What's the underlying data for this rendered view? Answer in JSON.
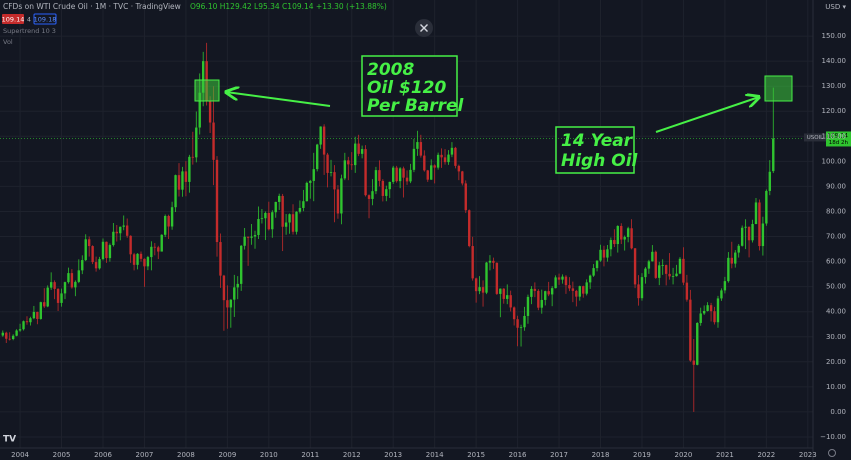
{
  "header": {
    "symbol": "CFDs on WTI Crude Oil · 1M · TVC · TradingView",
    "ohlc": "O96.10 H129.42 L95.34 C109.14 +13.30 (+13.88%)",
    "sell": "109.14",
    "spread": "4",
    "buy": "109.18",
    "indicator": "Supertrend 10 3",
    "volume": "Vol",
    "currency": "USD ▾",
    "symbol_tag": "USOIL",
    "countdown": "18d 2h"
  },
  "chart_data": {
    "type": "candlestick",
    "up_color": "#2fc42f",
    "down_color": "#c42b2b",
    "grid": true,
    "annotations": [
      "2008",
      "Oil $120",
      "Per Barrel",
      "14 Year",
      "High Oil"
    ],
    "ylim": [
      -14.4,
      164.4
    ],
    "yticks": [
      {
        "value": 150,
        "label": "150.00"
      },
      {
        "value": 140,
        "label": "140.00"
      },
      {
        "value": 130,
        "label": "130.00"
      },
      {
        "value": 120,
        "label": "120.00"
      },
      {
        "value": 110,
        "label": "110.00"
      },
      {
        "value": 100,
        "label": "100.00"
      },
      {
        "value": 90,
        "label": "90.00"
      },
      {
        "value": 80,
        "label": "80.00"
      },
      {
        "value": 70,
        "label": "70.00"
      },
      {
        "value": 60,
        "label": "60.00"
      },
      {
        "value": 50,
        "label": "50.00"
      },
      {
        "value": 40,
        "label": "40.00"
      },
      {
        "value": 30,
        "label": "30.00"
      },
      {
        "value": 20,
        "label": "20.00"
      },
      {
        "value": 10,
        "label": "10.00"
      },
      {
        "value": 0,
        "label": "0.00"
      },
      {
        "value": -10,
        "label": "−10.00"
      }
    ],
    "categories": [
      null,
      null,
      null,
      null,
      null,
      "2004",
      null,
      null,
      null,
      null,
      null,
      null,
      null,
      null,
      null,
      null,
      null,
      "2005",
      null,
      null,
      null,
      null,
      null,
      null,
      null,
      null,
      null,
      null,
      null,
      "2006",
      null,
      null,
      null,
      null,
      null,
      null,
      null,
      null,
      null,
      null,
      null,
      "2007",
      null,
      null,
      null,
      null,
      null,
      null,
      null,
      null,
      null,
      null,
      null,
      "2008",
      null,
      null,
      null,
      null,
      null,
      null,
      null,
      null,
      null,
      null,
      null,
      "2009",
      null,
      null,
      null,
      null,
      null,
      null,
      null,
      null,
      null,
      null,
      null,
      "2010",
      null,
      null,
      null,
      null,
      null,
      null,
      null,
      null,
      null,
      null,
      null,
      "2011",
      null,
      null,
      null,
      null,
      null,
      null,
      null,
      null,
      null,
      null,
      null,
      "2012",
      null,
      null,
      null,
      null,
      null,
      null,
      null,
      null,
      null,
      null,
      null,
      "2013",
      null,
      null,
      null,
      null,
      null,
      null,
      null,
      null,
      null,
      null,
      null,
      "2014",
      null,
      null,
      null,
      null,
      null,
      null,
      null,
      null,
      null,
      null,
      null,
      "2015",
      null,
      null,
      null,
      null,
      null,
      null,
      null,
      null,
      null,
      null,
      null,
      "2016",
      null,
      null,
      null,
      null,
      null,
      null,
      null,
      null,
      null,
      null,
      null,
      "2017",
      null,
      null,
      null,
      null,
      null,
      null,
      null,
      null,
      null,
      null,
      null,
      "2018",
      null,
      null,
      null,
      null,
      null,
      null,
      null,
      null,
      null,
      null,
      null,
      "2019",
      null,
      null,
      null,
      null,
      null,
      null,
      null,
      null,
      null,
      null,
      null,
      "2020",
      null,
      null,
      null,
      null,
      null,
      null,
      null,
      null,
      null,
      null,
      null,
      "2021",
      null,
      null,
      null,
      null,
      null,
      null,
      null,
      null,
      null,
      null,
      null,
      "2022",
      null,
      null,
      null,
      null,
      null,
      null,
      null,
      null,
      null,
      null,
      null,
      "2023",
      null
    ],
    "open": [
      30.5,
      31.6,
      29.2,
      29.1,
      30.4,
      32.5,
      33.0,
      36.2,
      35.8,
      37.4,
      39.9,
      37.1,
      43.8,
      42.1,
      49.6,
      51.8,
      49.1,
      43.5,
      47.3,
      51.8,
      55.4,
      49.7,
      51.9,
      56.5,
      60.6,
      68.9,
      66.2,
      59.8,
      57.3,
      61.0,
      67.9,
      61.4,
      66.6,
      71.9,
      71.3,
      73.9,
      74.4,
      70.3,
      62.9,
      58.7,
      63.1,
      61.1,
      58.1,
      61.8,
      65.9,
      65.7,
      64.0,
      70.7,
      78.2,
      74.0,
      81.7,
      94.5,
      88.7,
      96.0,
      91.8,
      101.8,
      101.6,
      113.5,
      127.4,
      140.0,
      124.1,
      115.5,
      100.6,
      67.8,
      54.4,
      44.6,
      41.7,
      44.8,
      49.7,
      51.1,
      66.3,
      69.9,
      69.5,
      70.0,
      70.6,
      77.0,
      77.3,
      79.4,
      72.9,
      79.7,
      83.8,
      86.2,
      73.9,
      75.6,
      78.9,
      71.9,
      79.9,
      81.4,
      84.1,
      91.4,
      92.2,
      96.9,
      106.7,
      113.9,
      102.7,
      95.4,
      95.7,
      88.8,
      79.2,
      93.2,
      100.4,
      98.8,
      98.5,
      107.1,
      103.0,
      104.9,
      86.5,
      85.0,
      88.1,
      96.5,
      92.2,
      86.2,
      88.9,
      91.8,
      97.5,
      92.1,
      97.2,
      93.5,
      92.0,
      96.6,
      105.0,
      107.7,
      102.3,
      96.4,
      92.7,
      98.4,
      97.5,
      102.6,
      101.6,
      99.7,
      102.7,
      105.4,
      98.2,
      96.0,
      91.2,
      80.5,
      66.2,
      53.3,
      48.2,
      49.8,
      47.6,
      59.6,
      60.3,
      59.5,
      47.1,
      49.2,
      45.1,
      46.6,
      41.7,
      37.0,
      33.6,
      33.8,
      38.3,
      45.9,
      49.1,
      48.3,
      41.6,
      44.7,
      48.2,
      46.9,
      49.4,
      53.7,
      52.8,
      54.0,
      50.6,
      49.3,
      48.3,
      46.0,
      50.2,
      47.2,
      51.7,
      54.4,
      57.4,
      60.4,
      64.7,
      61.6,
      64.9,
      68.6,
      67.0,
      74.2,
      68.8,
      69.8,
      73.3,
      65.3,
      50.9,
      45.4,
      53.8,
      57.2,
      60.1,
      63.9,
      53.5,
      58.5,
      58.6,
      55.1,
      54.1,
      54.2,
      55.2,
      61.1,
      51.6,
      44.8,
      20.5,
      18.8,
      35.5,
      39.3,
      40.3,
      42.6,
      40.2,
      35.8,
      45.3,
      48.5,
      52.2,
      61.5,
      59.2,
      63.6,
      66.3,
      73.5,
      73.9,
      68.5,
      75.0,
      83.6,
      66.2,
      75.2,
      88.2,
      96.1,
      null,
      null,
      null,
      null,
      null,
      null,
      null,
      null,
      null,
      null,
      null
    ],
    "high": [
      32.5,
      32.0,
      31.8,
      31.0,
      33.0,
      35.2,
      36.5,
      38.2,
      38.0,
      42.3,
      40.0,
      44.0,
      49.4,
      50.5,
      55.7,
      52.5,
      49.4,
      49.2,
      52.0,
      57.6,
      57.0,
      52.5,
      60.9,
      62.5,
      70.9,
      70.0,
      66.5,
      62.0,
      61.9,
      69.2,
      68.0,
      67.2,
      75.4,
      74.6,
      74.0,
      78.4,
      77.2,
      70.5,
      63.5,
      63.4,
      64.0,
      61.3,
      62.3,
      68.1,
      67.4,
      66.3,
      70.9,
      78.8,
      78.7,
      83.9,
      94.7,
      99.3,
      97.8,
      100.1,
      102.6,
      111.8,
      119.9,
      135.1,
      143.7,
      147.3,
      126.0,
      130.0,
      102.1,
      71.2,
      54.7,
      50.5,
      45.0,
      54.7,
      54.2,
      66.6,
      73.4,
      70.0,
      75.0,
      72.3,
      82.0,
      81.0,
      80.0,
      83.9,
      80.5,
      83.9,
      87.1,
      87.0,
      79.0,
      79.2,
      82.9,
      80.1,
      84.4,
      88.6,
      91.9,
      92.6,
      103.4,
      107.0,
      114.0,
      114.8,
      103.4,
      100.6,
      98.5,
      90.5,
      94.7,
      103.4,
      101.8,
      103.7,
      109.8,
      110.6,
      106.3,
      106.5,
      86.8,
      92.9,
      97.8,
      100.4,
      92.9,
      90.3,
      91.9,
      98.2,
      98.2,
      97.7,
      97.9,
      96.4,
      99.0,
      108.9,
      112.2,
      110.6,
      104.4,
      96.6,
      100.8,
      98.8,
      103.5,
      105.2,
      104.9,
      104.5,
      107.7,
      105.8,
      98.7,
      96.2,
      92.4,
      80.8,
      69.9,
      53.6,
      54.2,
      52.5,
      59.9,
      62.6,
      61.6,
      59.7,
      49.3,
      49.4,
      50.9,
      48.4,
      42.1,
      38.4,
      34.8,
      41.9,
      46.8,
      50.2,
      51.7,
      49.0,
      48.8,
      48.4,
      51.9,
      50.2,
      54.5,
      55.2,
      54.9,
      54.6,
      53.8,
      52.0,
      48.7,
      50.4,
      50.4,
      52.9,
      54.8,
      59.0,
      60.5,
      66.7,
      66.3,
      66.6,
      69.6,
      72.9,
      74.5,
      75.3,
      70.4,
      73.9,
      76.9,
      65.4,
      54.6,
      55.4,
      57.8,
      60.7,
      66.6,
      64.4,
      59.9,
      60.9,
      58.8,
      63.4,
      57.5,
      58.7,
      61.8,
      65.7,
      54.7,
      48.7,
      29.1,
      35.8,
      41.6,
      42.5,
      43.8,
      43.5,
      41.9,
      46.3,
      49.3,
      53.9,
      63.8,
      67.9,
      64.6,
      67.0,
      74.4,
      76.9,
      74.0,
      76.7,
      85.4,
      84.8,
      77.9,
      88.8,
      100.5,
      129.42,
      null,
      null,
      null,
      null,
      null,
      null,
      null,
      null,
      null,
      null,
      null
    ],
    "low": [
      30.0,
      27.5,
      28.5,
      28.6,
      30.2,
      32.0,
      32.5,
      34.8,
      34.5,
      37.0,
      35.0,
      36.8,
      41.5,
      41.8,
      48.7,
      45.0,
      40.3,
      42.0,
      45.0,
      51.2,
      49.2,
      46.2,
      51.4,
      55.0,
      60.2,
      62.0,
      59.0,
      56.0,
      56.8,
      60.5,
      59.5,
      60.0,
      66.0,
      68.0,
      68.5,
      72.5,
      69.5,
      59.5,
      56.5,
      56.9,
      60.0,
      49.9,
      56.6,
      56.5,
      62.5,
      61.0,
      64.0,
      69.8,
      69.0,
      72.7,
      79.8,
      86.0,
      85.9,
      86.1,
      87.5,
      98.7,
      99.6,
      110.7,
      122.0,
      122.3,
      111.3,
      90.5,
      62.0,
      49.5,
      32.4,
      33.2,
      33.6,
      37.9,
      45.0,
      48.3,
      64.8,
      58.3,
      66.7,
      65.1,
      69.0,
      75.2,
      68.6,
      72.4,
      69.5,
      77.5,
      80.6,
      64.2,
      70.7,
      71.1,
      70.8,
      70.8,
      79.2,
      80.1,
      84.0,
      85.1,
      84.1,
      96.0,
      105.0,
      94.6,
      89.6,
      94.0,
      75.7,
      77.1,
      74.9,
      92.5,
      92.5,
      96.6,
      95.4,
      102.1,
      101.2,
      86.0,
      77.3,
      82.5,
      86.9,
      90.0,
      84.0,
      84.1,
      85.4,
      91.0,
      91.5,
      89.3,
      85.6,
      90.6,
      91.3,
      95.7,
      102.2,
      101.5,
      95.9,
      91.8,
      92.6,
      91.2,
      96.7,
      97.4,
      98.7,
      98.6,
      101.7,
      97.2,
      92.5,
      90.4,
      79.4,
      65.7,
      52.4,
      43.6,
      47.0,
      42.0,
      47.0,
      56.5,
      57.1,
      46.7,
      37.8,
      43.2,
      43.0,
      40.1,
      34.5,
      26.2,
      26.1,
      32.4,
      35.2,
      43.0,
      45.8,
      40.6,
      39.2,
      42.5,
      46.2,
      42.2,
      49.3,
      50.7,
      51.2,
      47.1,
      48.2,
      43.8,
      42.1,
      44.4,
      45.6,
      46.5,
      49.1,
      53.9,
      56.1,
      59.9,
      58.1,
      60.0,
      62.1,
      65.8,
      63.6,
      67.0,
      64.4,
      67.7,
      64.9,
      49.4,
      42.4,
      44.4,
      51.2,
      55.1,
      60.0,
      53.1,
      50.6,
      54.7,
      50.5,
      52.8,
      50.9,
      54.0,
      55.0,
      50.6,
      44.0,
      20.0,
      0,
      18.6,
      34.4,
      38.7,
      40.1,
      36.1,
      34.9,
      33.6,
      44.3,
      47.3,
      51.6,
      57.3,
      57.6,
      61.6,
      66.0,
      65.0,
      61.7,
      67.6,
      74.9,
      64.4,
      62.4,
      74.3,
      86.5,
      95.34,
      null,
      null,
      null,
      null,
      null,
      null,
      null,
      null,
      null,
      null,
      null
    ],
    "close": [
      31.6,
      29.2,
      29.1,
      30.4,
      32.5,
      33.0,
      36.2,
      35.8,
      37.4,
      39.9,
      37.1,
      43.8,
      42.1,
      49.6,
      51.8,
      49.1,
      43.5,
      47.3,
      51.8,
      55.4,
      49.7,
      51.9,
      56.5,
      60.6,
      68.9,
      66.2,
      59.8,
      57.3,
      61.0,
      67.9,
      61.4,
      66.6,
      71.9,
      71.3,
      73.9,
      74.4,
      70.3,
      62.9,
      58.7,
      63.1,
      61.1,
      58.1,
      61.8,
      65.9,
      65.7,
      64.0,
      70.7,
      78.2,
      74.0,
      81.7,
      94.5,
      88.7,
      96.0,
      91.8,
      101.8,
      101.6,
      113.5,
      127.4,
      140.0,
      124.1,
      115.5,
      100.6,
      67.8,
      54.4,
      44.6,
      41.7,
      44.8,
      49.7,
      51.1,
      66.3,
      69.9,
      69.5,
      70.0,
      70.6,
      77.0,
      77.3,
      79.4,
      72.9,
      79.7,
      83.8,
      86.2,
      73.9,
      75.6,
      78.9,
      71.9,
      79.9,
      81.4,
      84.1,
      91.4,
      92.2,
      96.9,
      106.7,
      113.9,
      102.7,
      95.4,
      95.7,
      88.8,
      79.2,
      93.2,
      100.4,
      98.8,
      98.5,
      107.1,
      103.0,
      104.9,
      86.5,
      85.0,
      88.1,
      96.5,
      92.2,
      86.2,
      88.9,
      91.8,
      97.5,
      92.1,
      97.2,
      93.5,
      92.0,
      96.6,
      105.0,
      107.7,
      102.3,
      96.4,
      92.7,
      98.4,
      97.5,
      102.6,
      101.6,
      99.7,
      102.7,
      105.4,
      98.2,
      96.0,
      91.2,
      80.5,
      66.2,
      53.3,
      48.2,
      49.8,
      47.6,
      59.6,
      60.3,
      59.5,
      47.1,
      49.2,
      45.1,
      46.6,
      41.7,
      37.0,
      33.6,
      33.8,
      38.3,
      45.9,
      49.1,
      48.3,
      41.6,
      44.7,
      48.2,
      46.9,
      49.4,
      53.7,
      52.8,
      54.0,
      50.6,
      49.3,
      48.3,
      46.0,
      50.2,
      47.2,
      51.7,
      54.4,
      57.4,
      60.4,
      64.7,
      61.6,
      64.9,
      68.6,
      67.0,
      74.2,
      68.8,
      69.8,
      73.3,
      65.3,
      50.9,
      45.4,
      53.8,
      57.2,
      60.1,
      63.9,
      53.5,
      58.5,
      58.6,
      55.1,
      54.1,
      54.2,
      55.2,
      61.1,
      51.6,
      44.8,
      20.5,
      18.8,
      35.5,
      39.3,
      40.3,
      42.6,
      40.2,
      35.8,
      45.3,
      48.5,
      52.2,
      61.5,
      59.2,
      63.6,
      66.3,
      73.5,
      73.9,
      68.5,
      75.0,
      83.6,
      66.2,
      75.2,
      88.2,
      95.84,
      109.14,
      null,
      null,
      null,
      null,
      null,
      null,
      null,
      null,
      null,
      null,
      null
    ]
  }
}
